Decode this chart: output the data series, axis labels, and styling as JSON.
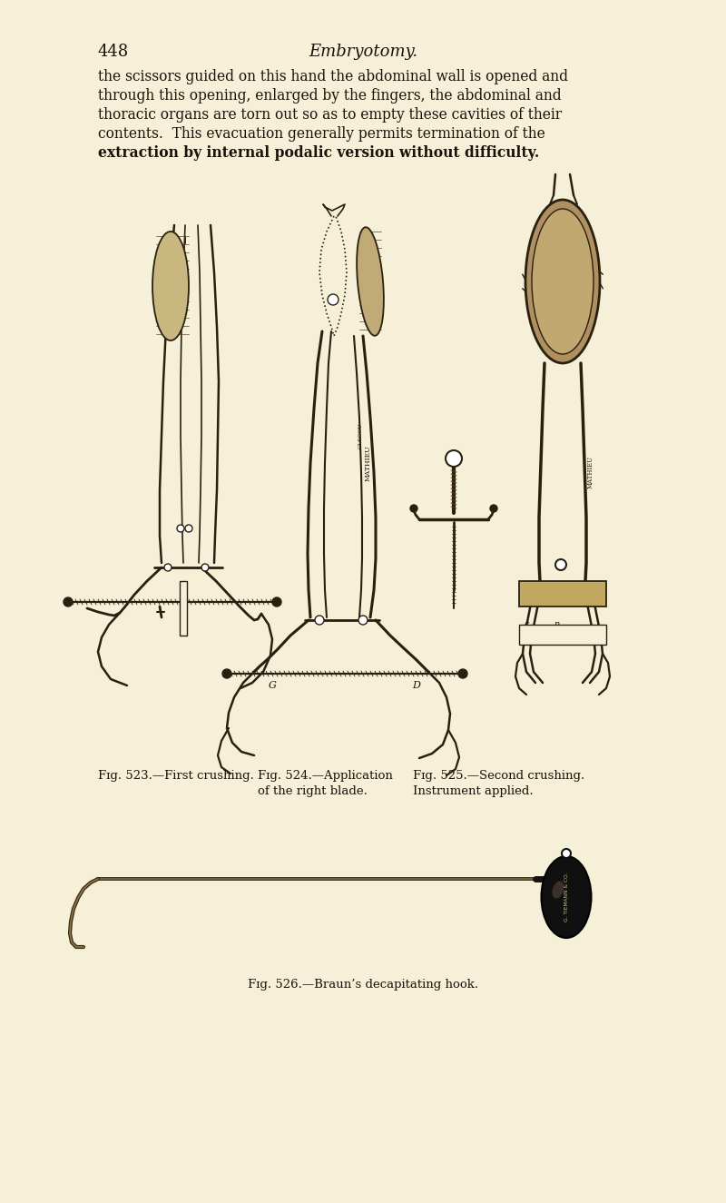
{
  "bg": "#f7f0d8",
  "tc": "#1a1208",
  "ic": "#2a2010",
  "page_number": "448",
  "header": "Embryotomy.",
  "body": [
    "the scissors guided on this hand the abdominal wall is opened and",
    "through this opening, enlarged by the fingers, the abdominal and",
    "thoracic organs are torn out so as to empty these cavities of their",
    "contents.  This evacuation generally permits termination of the",
    "extraction by internal podalic version without difficulty."
  ],
  "cap523": "Fɪg. 523.—First crushing.",
  "cap524a": "Fɪg. 524.—Application",
  "cap524b": "of the right blade.",
  "cap525a": "Fɪg. 525.—Second crushing.",
  "cap525b": "Instrument applied.",
  "cap526": "Fɪg. 526.—Braun’s decapitating hook.",
  "fs_body": 11.2,
  "fs_cap": 9.5,
  "fs_hdr": 13.0
}
